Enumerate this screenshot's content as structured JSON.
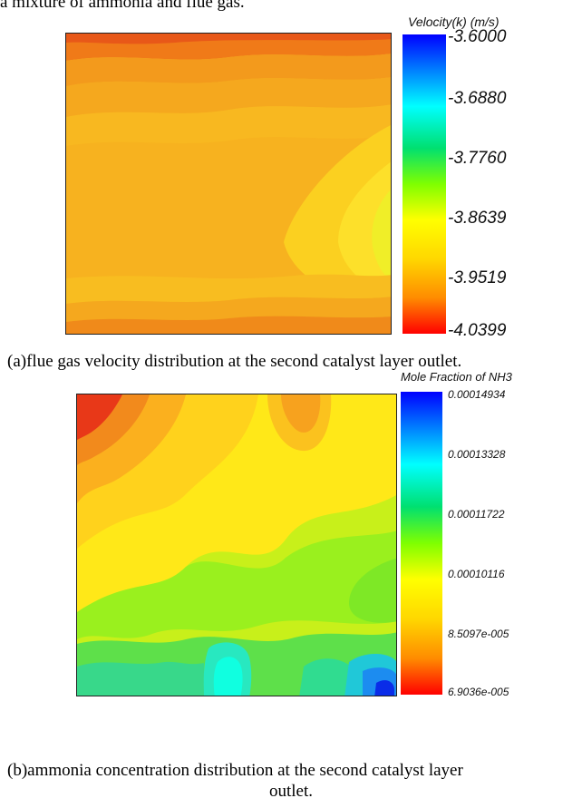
{
  "page": {
    "top_text": "a mixture of ammonia and flue gas."
  },
  "figure_a": {
    "legend_title": "Velocity(k) (m/s)",
    "ticks": [
      "-3.6000",
      "-3.6880",
      "-3.7760",
      "-3.8639",
      "-3.9519",
      "-4.0399"
    ],
    "caption": "(a)flue gas velocity distribution at the second catalyst layer outlet."
  },
  "figure_b": {
    "legend_title": "Mole Fraction of NH3",
    "ticks": [
      "0.00014934",
      "0.00013328",
      "0.00011722",
      "0.00010116",
      "8.5097e-005",
      "6.9036e-005"
    ],
    "caption_line1": "(b)ammonia concentration distribution at the second catalyst layer",
    "caption_line2": "outlet."
  },
  "colors": {
    "colormap": [
      "#ff0000",
      "#ff8c00",
      "#ffd700",
      "#ffff00",
      "#7fff00",
      "#00e070",
      "#00ffff",
      "#0080ff",
      "#0000ff"
    ]
  }
}
